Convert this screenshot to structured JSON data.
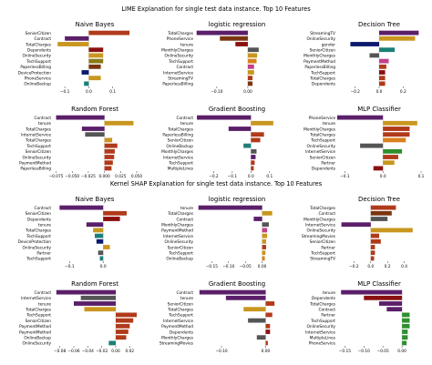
{
  "section_titles": [
    "LIME Explanation for single test data instance.  Top 10 Features",
    "Kernel SHAP Explanation for single test data instance.  Top 10 Features"
  ],
  "colors": {
    "red": "#b03a1a",
    "purple": "#5b1f6a",
    "gold": "#c9961f",
    "brown": "#7a3510",
    "navy": "#0b1a6e",
    "teal": "#1b8078",
    "green": "#2f8f2f",
    "gray": "#555555",
    "pink": "#c0408a",
    "darkred": "#8b1010",
    "orange": "#d9821f",
    "blue": "#2c53a8",
    "olive": "#8a7a1a"
  },
  "chart_data": [
    {
      "section": "LIME",
      "title": "Naive Bayes",
      "type": "bar",
      "orientation": "horizontal",
      "xlim": [
        -0.15,
        0.2
      ],
      "xticks": [
        -0.1,
        0.0,
        0.1
      ],
      "xtick_labels": [
        "−0.1",
        "0.0",
        "0.1"
      ],
      "categories": [
        "SeniorCitizen",
        "Contract",
        "TotalCharges",
        "Dependents",
        "OnlineSecurity",
        "TechSupport",
        "PaperlessBilling",
        "DeviceProtection",
        "PhoneService",
        "OnlineBackup"
      ],
      "values": [
        0.17,
        -0.1,
        -0.13,
        0.06,
        0.06,
        0.06,
        0.05,
        -0.03,
        0.05,
        -0.02
      ],
      "colors": [
        "red",
        "purple",
        "gold",
        "darkred",
        "gold",
        "olive",
        "brown",
        "navy",
        "gold",
        "teal"
      ]
    },
    {
      "section": "LIME",
      "title": "logistic regression",
      "type": "bar",
      "orientation": "horizontal",
      "xlim": [
        -0.17,
        0.1
      ],
      "xticks": [
        -0.1,
        0.0
      ],
      "xtick_labels": [
        "−0.10",
        "0.00"
      ],
      "categories": [
        "TotalCharges",
        "PhoneService",
        "tenure",
        "MonthlyCharges",
        "OnlineSecurity",
        "TechSupport",
        "Contract",
        "InternetService",
        "StreamingTV",
        "PaperlessBilling"
      ],
      "values": [
        -0.165,
        -0.09,
        -0.04,
        0.035,
        0.03,
        0.028,
        0.02,
        0.02,
        0.015,
        0.015
      ],
      "colors": [
        "purple",
        "brown",
        "darkred",
        "gray",
        "gold",
        "orange",
        "pink",
        "gold",
        "red",
        "brown"
      ]
    },
    {
      "section": "LIME",
      "title": "Decision Tree",
      "type": "bar",
      "orientation": "horizontal",
      "xlim": [
        -0.35,
        0.35
      ],
      "xticks": [
        -0.2,
        0.0,
        0.2
      ],
      "xtick_labels": [
        "−0.2",
        "0.0",
        "0.2"
      ],
      "categories": [
        "StreamingTV",
        "OnlineSecurity",
        "gender",
        "SeniorCitizen",
        "MonthlyCharges",
        "PaymentMethod",
        "PaperlessBilling",
        "TechSupport",
        "TotalCharges",
        "Dependents"
      ],
      "values": [
        0.33,
        0.3,
        -0.24,
        0.13,
        -0.08,
        0.08,
        0.06,
        0.05,
        0.05,
        0.05
      ],
      "colors": [
        "purple",
        "gold",
        "navy",
        "teal",
        "gray",
        "pink",
        "red",
        "darkred",
        "red",
        "red"
      ]
    },
    {
      "section": "LIME",
      "title": "Random Forest",
      "type": "bar",
      "orientation": "horizontal",
      "xlim": [
        -0.08,
        0.05
      ],
      "xticks": [
        -0.075,
        -0.05,
        -0.025,
        0.0,
        0.025,
        0.05
      ],
      "xtick_labels": [
        "−0.075",
        "−0.050",
        "−0.025",
        "0.000",
        "0.025",
        "0.050"
      ],
      "categories": [
        "Contract",
        "tenure",
        "TotalCharges",
        "InternetService",
        "TotalCharges",
        "TechSupport",
        "SeniorCitizen",
        "OnlineSecurity",
        "PaymentMethod",
        "PaperlessBilling"
      ],
      "values": [
        -0.075,
        0.045,
        -0.035,
        -0.03,
        0.012,
        0.02,
        0.016,
        0.015,
        0.013,
        0.011
      ],
      "colors": [
        "purple",
        "gold",
        "purple",
        "gray",
        "gold",
        "red",
        "red",
        "red",
        "red",
        "red"
      ]
    },
    {
      "section": "LIME",
      "title": "Gradient Boosting",
      "type": "bar",
      "orientation": "horizontal",
      "xlim": [
        -0.3,
        0.15
      ],
      "xticks": [
        -0.2,
        -0.1,
        0.0,
        0.1
      ],
      "xtick_labels": [
        "−0.2",
        "−0.1",
        "0.0",
        "0.1"
      ],
      "categories": [
        "Contract",
        "tenure",
        "TotalCharges",
        "PaperlessBilling",
        "SeniorCitizen",
        "OnlineBackup",
        "MonthlyCharges",
        "InternetService",
        "TechSupport",
        "MultipleLines"
      ],
      "values": [
        -0.29,
        0.12,
        -0.12,
        0.07,
        0.05,
        -0.04,
        0.03,
        0.025,
        0.02,
        0.015
      ],
      "colors": [
        "purple",
        "gold",
        "purple",
        "red",
        "red",
        "teal",
        "gray",
        "purple",
        "red",
        "red"
      ]
    },
    {
      "section": "LIME",
      "title": "MLP Classifier",
      "type": "bar",
      "orientation": "horizontal",
      "xlim": [
        -0.12,
        0.1
      ],
      "xticks": [
        -0.1,
        0.0,
        0.1
      ],
      "xtick_labels": [
        "−0.1",
        "0.0",
        "0.1"
      ],
      "categories": [
        "PhoneService",
        "tenure",
        "MonthlyCharges",
        "TotalCharges",
        "TechSupport",
        "OnlineSecurity",
        "InternetService",
        "SeniorCitizen",
        "Partner",
        "Dependents"
      ],
      "values": [
        -0.12,
        0.09,
        0.07,
        0.07,
        0.06,
        -0.06,
        0.05,
        0.04,
        0.03,
        -0.025
      ],
      "colors": [
        "purple",
        "gold",
        "red",
        "red",
        "orange",
        "gray",
        "green",
        "red",
        "gold",
        "darkred"
      ]
    },
    {
      "section": "SHAP",
      "title": "Naive Bayes",
      "type": "bar",
      "orientation": "horizontal",
      "xlim": [
        -0.15,
        0.1
      ],
      "xticks": [
        -0.1,
        0.0
      ],
      "xtick_labels": [
        "−0.1",
        "0.0"
      ],
      "categories": [
        "Contract",
        "SeniorCitizen",
        "Dependents",
        "tenure",
        "TotalCharges",
        "TechSupport",
        "DeviceProtection",
        "OnlineSecurity",
        "Partner",
        "TechSupport"
      ],
      "values": [
        -0.13,
        0.07,
        0.05,
        -0.05,
        -0.03,
        -0.025,
        -0.02,
        0.02,
        -0.015,
        -0.01
      ],
      "colors": [
        "purple",
        "red",
        "darkred",
        "purple",
        "gold",
        "teal",
        "navy",
        "gold",
        "gray",
        "teal"
      ]
    },
    {
      "section": "SHAP",
      "title": "logistic regression",
      "type": "bar",
      "orientation": "horizontal",
      "xlim": [
        -0.2,
        0.05
      ],
      "xticks": [
        -0.15,
        -0.1,
        -0.05,
        0.0
      ],
      "xtick_labels": [
        "−0.15",
        "−0.10",
        "−0.05",
        "0.00"
      ],
      "categories": [
        "tenure",
        "TotalCharges",
        "Contract",
        "MonthlyCharges",
        "PaymentMethod",
        "InternetService",
        "OnlineSecurity",
        "SeniorCitizen",
        "TechSupport",
        "OnlineBackup"
      ],
      "values": [
        -0.19,
        0.03,
        -0.025,
        0.02,
        0.015,
        0.015,
        0.012,
        0.012,
        0.01,
        0.008
      ],
      "colors": [
        "purple",
        "gold",
        "purple",
        "gray",
        "pink",
        "gold",
        "gold",
        "red",
        "gold",
        "orange"
      ]
    },
    {
      "section": "SHAP",
      "title": "Decision Tree",
      "type": "bar",
      "orientation": "horizontal",
      "xlim": [
        -0.4,
        0.6
      ],
      "xticks": [
        -0.2,
        0.0,
        0.2,
        0.4
      ],
      "xtick_labels": [
        "−0.2",
        "0.0",
        "0.2",
        "0.4"
      ],
      "categories": [
        "TotalCharges",
        "Contract",
        "MonthlyCharges",
        "InternetService",
        "OnlineSecurity",
        "StreamingMovies",
        "SeniorCitizen",
        "Partner",
        "TechSupport",
        "StreamingTV"
      ],
      "values": [
        0.3,
        0.25,
        0.2,
        -0.35,
        0.5,
        0.1,
        0.12,
        0.05,
        0.05,
        0.04
      ],
      "colors": [
        "red",
        "brown",
        "gray",
        "purple",
        "gold",
        "red",
        "red",
        "red",
        "red",
        "red"
      ]
    },
    {
      "section": "SHAP",
      "title": "Random Forest",
      "type": "bar",
      "orientation": "horizontal",
      "xlim": [
        -0.09,
        0.03
      ],
      "xticks": [
        -0.08,
        -0.06,
        -0.04,
        -0.02,
        0.0,
        0.02
      ],
      "xtick_labels": [
        "−0.08",
        "−0.06",
        "−0.04",
        "−0.02",
        "0.00",
        "0.02"
      ],
      "categories": [
        "Contract",
        "InternetService",
        "tenure",
        "TotalCharges",
        "TechSupport",
        "SeniorCitizen",
        "PaymentMethod",
        "PaymentMethod",
        "OnlineBackup",
        "OnlineSecurity"
      ],
      "values": [
        -0.085,
        -0.05,
        -0.06,
        -0.045,
        0.03,
        0.025,
        0.02,
        0.018,
        0.015,
        -0.01
      ],
      "colors": [
        "purple",
        "gray",
        "purple",
        "gold",
        "red",
        "red",
        "red",
        "red",
        "red",
        "teal"
      ]
    },
    {
      "section": "SHAP",
      "title": "Gradient Boosting",
      "type": "bar",
      "orientation": "horizontal",
      "xlim": [
        -0.16,
        0.03
      ],
      "xticks": [
        -0.1,
        0.0
      ],
      "xtick_labels": [
        "−0.10",
        "0.00"
      ],
      "categories": [
        "Contract",
        "tenure",
        "SeniorCitizen",
        "TotalCharges",
        "TechSupport",
        "InternetService",
        "PaymentMethod",
        "Dependents",
        "MonthlyCharges",
        "StreamingMovies"
      ],
      "values": [
        -0.15,
        -0.09,
        0.02,
        -0.05,
        0.015,
        -0.04,
        0.01,
        0.01,
        -0.02,
        0.005
      ],
      "colors": [
        "purple",
        "purple",
        "red",
        "gold",
        "red",
        "gray",
        "red",
        "darkred",
        "gray",
        "red"
      ]
    },
    {
      "section": "SHAP",
      "title": "MLP Classifier",
      "type": "bar",
      "orientation": "horizontal",
      "xlim": [
        -0.17,
        0.05
      ],
      "xticks": [
        -0.15,
        -0.1,
        -0.05,
        0.0
      ],
      "xtick_labels": [
        "−0.15",
        "−0.10",
        "−0.05",
        "0.00"
      ],
      "categories": [
        "tenure",
        "Dependents",
        "TotalCharges",
        "Contract",
        "Partner",
        "TechSupport",
        "OnlineSecurity",
        "InternetService",
        "MultipleLines",
        "PhoneService"
      ],
      "values": [
        -0.16,
        -0.1,
        -0.06,
        -0.04,
        0.02,
        0.02,
        0.02,
        0.015,
        0.015,
        0.012
      ],
      "colors": [
        "purple",
        "darkred",
        "purple",
        "purple",
        "green",
        "green",
        "green",
        "green",
        "green",
        "green"
      ]
    }
  ]
}
